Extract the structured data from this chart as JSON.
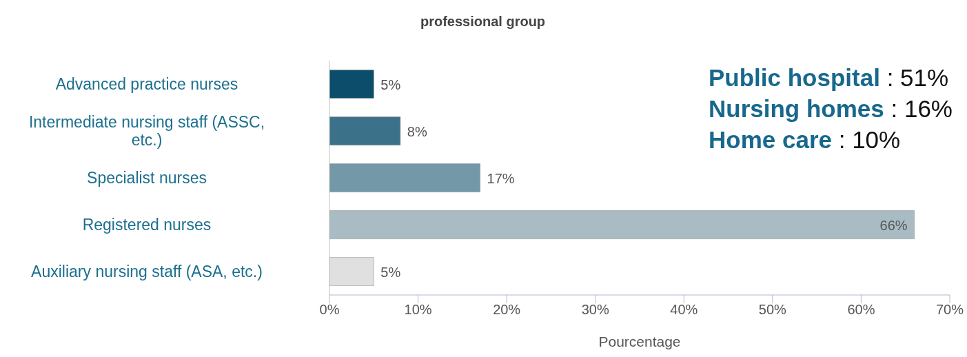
{
  "chart_data": {
    "type": "bar",
    "orientation": "horizontal",
    "title": "professional group",
    "xlabel": "Pourcentage",
    "categories": [
      "Advanced practice nurses",
      "Intermediate nursing staff (ASSC, etc.)",
      "Specialist nurses",
      "Registered nurses",
      "Auxiliary nursing staff (ASA, etc.)"
    ],
    "values": [
      5,
      8,
      17,
      66,
      5
    ],
    "colors": [
      "#0b4d6b",
      "#3b7289",
      "#7399a8",
      "#a9bcc3",
      "#e0e0e0"
    ],
    "value_labels": [
      "5%",
      "8%",
      "17%",
      "66%",
      "5%"
    ],
    "xlim": [
      0,
      70
    ],
    "xticks": [
      {
        "value": 0,
        "label": "0%"
      },
      {
        "value": 10,
        "label": "10%"
      },
      {
        "value": 20,
        "label": "20%"
      },
      {
        "value": 30,
        "label": "30%"
      },
      {
        "value": 40,
        "label": "40%"
      },
      {
        "value": 50,
        "label": "50%"
      },
      {
        "value": 60,
        "label": "60%"
      },
      {
        "value": 70,
        "label": "70%"
      }
    ],
    "grid": false,
    "annotations": [
      "Public hospital : 51%",
      "Nursing homes : 16%",
      "Home care : 10%"
    ]
  }
}
